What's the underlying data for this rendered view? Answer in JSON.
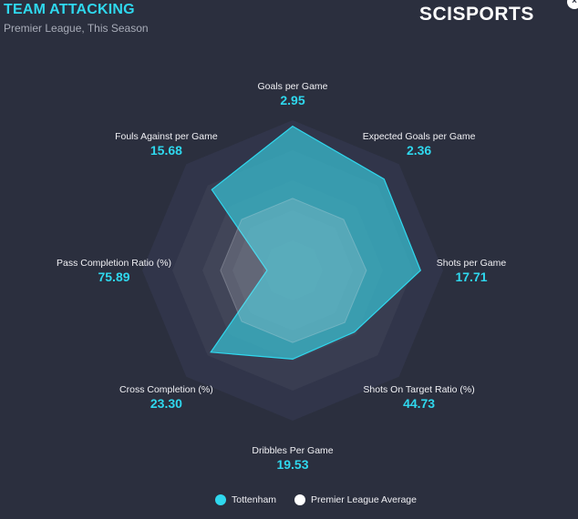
{
  "header": {
    "title": "TEAM ATTACKING",
    "subtitle": "Premier League, This Season",
    "brand": "SCISPORTS",
    "close_glyph": "×"
  },
  "colors": {
    "accent": "#2fd8ee",
    "team_fill": "#38b6c8",
    "league_fill": "#d8dce4",
    "background": "#2b2f3e"
  },
  "chart_data": {
    "type": "radar",
    "title": "TEAM ATTACKING",
    "axes": [
      "Goals per Game",
      "Expected Goals per Game",
      "Shots per Game",
      "Shots On Target Ratio (%)",
      "Dribbles Per Game",
      "Cross Completion (%)",
      "Pass Completion Ratio (%)",
      "Fouls Against per Game"
    ],
    "display_values": [
      "2.95",
      "2.36",
      "17.71",
      "44.73",
      "19.53",
      "23.30",
      "75.89",
      "15.68"
    ],
    "rings": 5,
    "series": [
      {
        "name": "Tottenham",
        "values": [
          2.95,
          2.36,
          17.71,
          44.73,
          19.53,
          23.3,
          75.89,
          15.68
        ],
        "normalized": [
          0.96,
          0.86,
          0.85,
          0.58,
          0.59,
          0.77,
          0.17,
          0.76
        ],
        "color": "#2fd8ee"
      },
      {
        "name": "Premier League Average",
        "normalized": [
          0.48,
          0.48,
          0.49,
          0.49,
          0.48,
          0.48,
          0.48,
          0.48
        ],
        "color": "#ffffff"
      }
    ],
    "legend_position": "bottom-center"
  }
}
